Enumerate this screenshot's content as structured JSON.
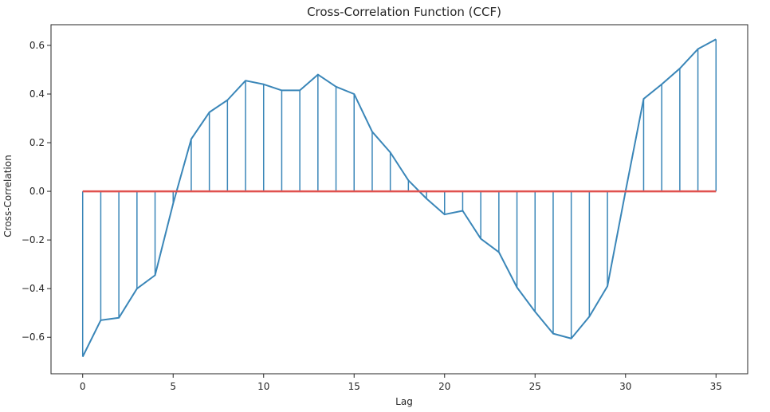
{
  "chart_data": {
    "type": "stem",
    "title": "Cross-Correlation Function (CCF)",
    "xlabel": "Lag",
    "ylabel": "Cross-Correlation",
    "xlim": [
      -1.75,
      36.75
    ],
    "ylim": [
      -0.75,
      0.685
    ],
    "xticks": [
      0,
      5,
      10,
      15,
      20,
      25,
      30,
      35
    ],
    "yticks": [
      -0.6,
      -0.4,
      -0.2,
      0.0,
      0.2,
      0.4,
      0.6
    ],
    "xtick_labels": [
      "0",
      "5",
      "10",
      "15",
      "20",
      "25",
      "30",
      "35"
    ],
    "ytick_labels": [
      "−0.6",
      "−0.4",
      "−0.2",
      "0.0",
      "0.2",
      "0.4",
      "0.6"
    ],
    "grid": false,
    "colors": {
      "series": "#3a86b8",
      "baseline": "#e0524f",
      "axes": "#262626"
    },
    "x": [
      0,
      1,
      2,
      3,
      4,
      5,
      6,
      7,
      8,
      9,
      10,
      11,
      12,
      13,
      14,
      15,
      16,
      17,
      18,
      19,
      20,
      21,
      22,
      23,
      24,
      25,
      26,
      27,
      28,
      29,
      30,
      31,
      32,
      33,
      34,
      35
    ],
    "values": [
      -0.68,
      -0.53,
      -0.52,
      -0.4,
      -0.345,
      -0.05,
      0.215,
      0.325,
      0.375,
      0.455,
      0.44,
      0.415,
      0.415,
      0.48,
      0.43,
      0.4,
      0.245,
      0.16,
      0.045,
      -0.03,
      -0.095,
      -0.08,
      -0.195,
      -0.25,
      -0.395,
      -0.495,
      -0.585,
      -0.605,
      -0.515,
      -0.39,
      0.0,
      0.38,
      0.44,
      0.505,
      0.585,
      0.625
    ]
  }
}
